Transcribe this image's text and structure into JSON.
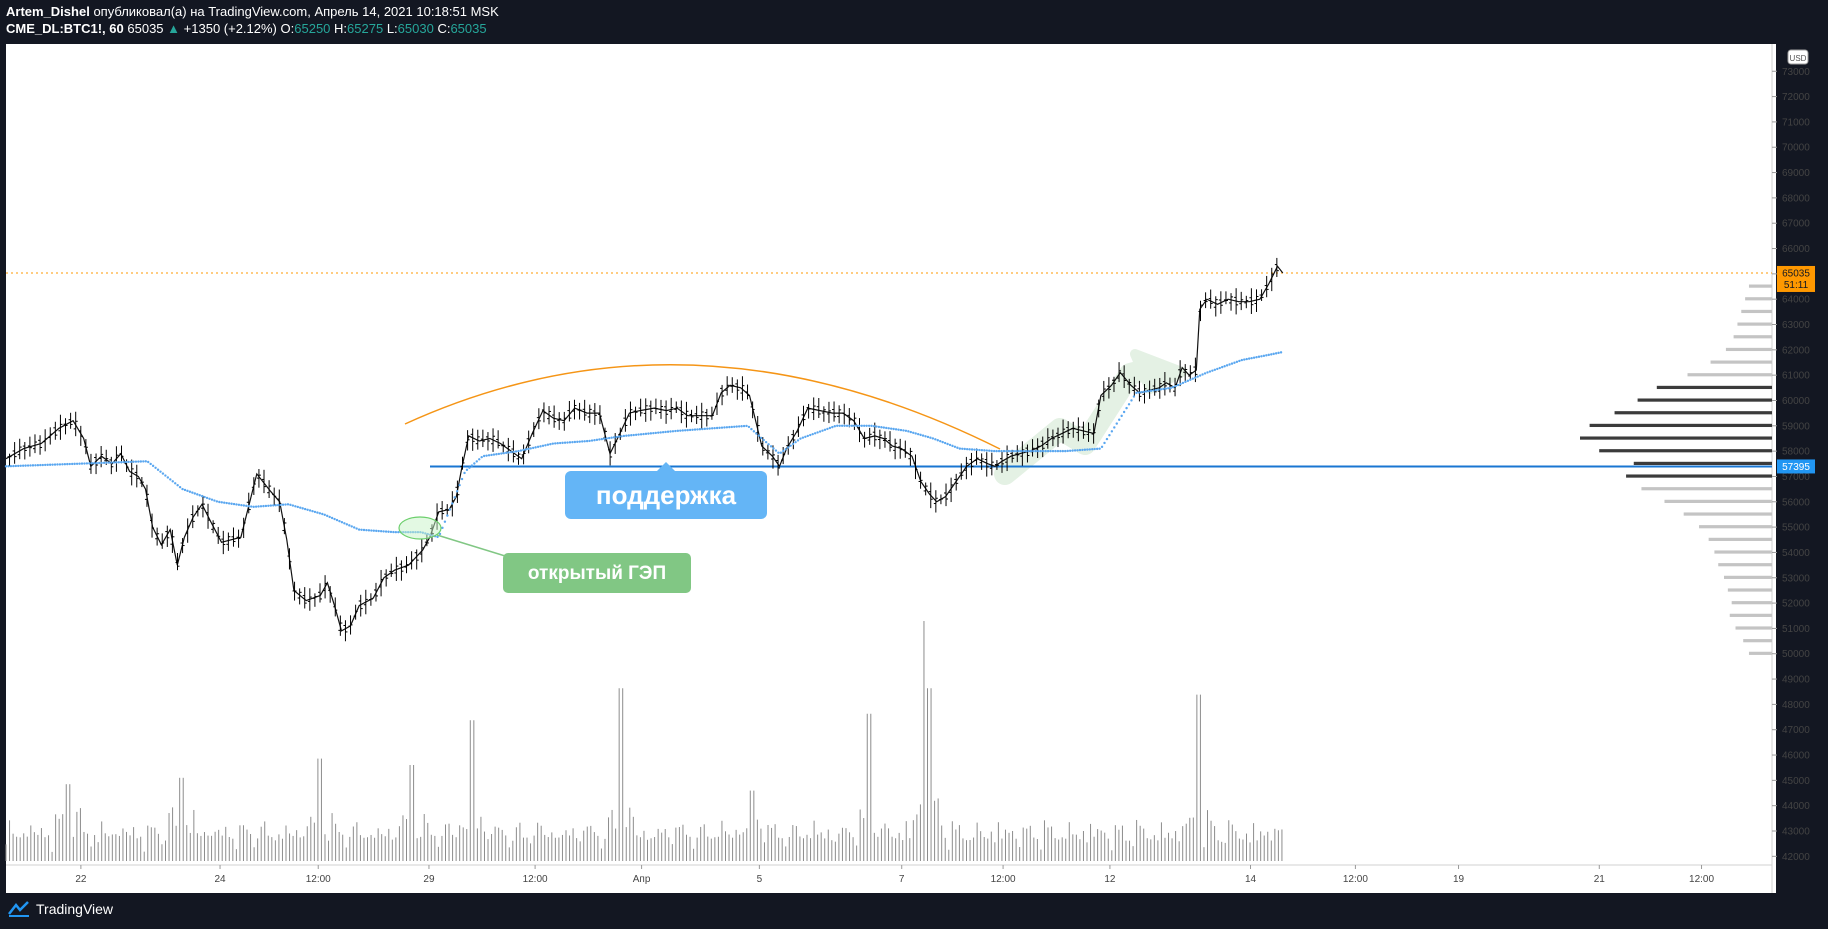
{
  "header": {
    "author": "Artem_Dishel",
    "published_text": "опубликовал(а) на TradingView.com, Апрель 14, 2021 10:18:51 MSK",
    "symbol": "CME_DL:BTC1!, 60",
    "last": "65035",
    "change_arrow": "▲",
    "change": "+1350 (+2.12%)",
    "o_label": "O:",
    "o_value": "65250",
    "h_label": "H:",
    "h_value": "65275",
    "l_label": "L:",
    "l_value": "65030",
    "c_label": "C:",
    "c_value": "65035"
  },
  "footer": {
    "brand": "TradingView"
  },
  "colors": {
    "background": "#131722",
    "plot_background": "#ffffff",
    "candle": "#000000",
    "vwap": "#5aa7f0",
    "support": "#1976d2",
    "arc": "#f59516",
    "price_tag": "#ff9800",
    "support_tag": "#2196f3",
    "callout_blue": "#64b5f6",
    "callout_green": "#81c784",
    "volume": "#8c8c8c",
    "profile_dark": "#3b3b3b",
    "profile_light": "#c4c4c4",
    "up_text": "#26a69a"
  },
  "chart_data": {
    "type": "candlestick",
    "symbol": "CME_DL:BTC1!",
    "interval": "60",
    "currency": "USD",
    "ylim": [
      41500,
      73800
    ],
    "y_ticks": [
      42000,
      43000,
      44000,
      45000,
      46000,
      47000,
      48000,
      49000,
      50000,
      51000,
      52000,
      53000,
      54000,
      55000,
      56000,
      57000,
      58000,
      59000,
      60000,
      61000,
      62000,
      63000,
      64000,
      65000,
      66000,
      67000,
      68000,
      69000,
      70000,
      71000,
      72000,
      73000
    ],
    "x_tick_labels": [
      {
        "label": "22",
        "pos": 0.0424
      },
      {
        "label": "24",
        "pos": 0.1212
      },
      {
        "label": "12:00",
        "pos": 0.1768
      },
      {
        "label": "29",
        "pos": 0.2395
      },
      {
        "label": "12:00",
        "pos": 0.2996
      },
      {
        "label": "Апр",
        "pos": 0.3599
      },
      {
        "label": "5",
        "pos": 0.4266
      },
      {
        "label": "7",
        "pos": 0.5072
      },
      {
        "label": "12:00",
        "pos": 0.5646
      },
      {
        "label": "12",
        "pos": 0.6251
      },
      {
        "label": "14",
        "pos": 0.7047
      },
      {
        "label": "12:00",
        "pos": 0.7641
      },
      {
        "label": "19",
        "pos": 0.8225
      },
      {
        "label": "21",
        "pos": 0.9022
      },
      {
        "label": "12:00",
        "pos": 0.9601
      }
    ],
    "price_path": [
      [
        0.0,
        57700
      ],
      [
        0.01,
        58100
      ],
      [
        0.02,
        58300
      ],
      [
        0.03,
        58900
      ],
      [
        0.038,
        59200
      ],
      [
        0.044,
        58500
      ],
      [
        0.048,
        57400
      ],
      [
        0.054,
        57800
      ],
      [
        0.06,
        57500
      ],
      [
        0.065,
        57900
      ],
      [
        0.07,
        57200
      ],
      [
        0.075,
        57000
      ],
      [
        0.079,
        56500
      ],
      [
        0.083,
        55000
      ],
      [
        0.088,
        54300
      ],
      [
        0.093,
        54900
      ],
      [
        0.097,
        53500
      ],
      [
        0.101,
        54600
      ],
      [
        0.106,
        55400
      ],
      [
        0.111,
        55900
      ],
      [
        0.116,
        55200
      ],
      [
        0.122,
        54400
      ],
      [
        0.133,
        54600
      ],
      [
        0.142,
        57100
      ],
      [
        0.15,
        56400
      ],
      [
        0.155,
        56000
      ],
      [
        0.159,
        54500
      ],
      [
        0.163,
        52500
      ],
      [
        0.17,
        52100
      ],
      [
        0.178,
        52300
      ],
      [
        0.182,
        52800
      ],
      [
        0.186,
        51900
      ],
      [
        0.19,
        50900
      ],
      [
        0.195,
        51100
      ],
      [
        0.2,
        51900
      ],
      [
        0.208,
        52200
      ],
      [
        0.214,
        53000
      ],
      [
        0.22,
        53300
      ],
      [
        0.228,
        53500
      ],
      [
        0.236,
        54100
      ],
      [
        0.24,
        54600
      ],
      [
        0.245,
        55600
      ],
      [
        0.251,
        55700
      ],
      [
        0.255,
        56200
      ],
      [
        0.258,
        57300
      ],
      [
        0.262,
        58600
      ],
      [
        0.268,
        58400
      ],
      [
        0.274,
        58500
      ],
      [
        0.28,
        58300
      ],
      [
        0.286,
        58000
      ],
      [
        0.292,
        57700
      ],
      [
        0.298,
        58700
      ],
      [
        0.304,
        59600
      ],
      [
        0.31,
        59300
      ],
      [
        0.316,
        59200
      ],
      [
        0.322,
        59700
      ],
      [
        0.329,
        59500
      ],
      [
        0.336,
        59500
      ],
      [
        0.342,
        57900
      ],
      [
        0.347,
        58600
      ],
      [
        0.353,
        59500
      ],
      [
        0.359,
        59600
      ],
      [
        0.367,
        59700
      ],
      [
        0.374,
        59600
      ],
      [
        0.38,
        59700
      ],
      [
        0.386,
        59400
      ],
      [
        0.393,
        59400
      ],
      [
        0.4,
        59400
      ],
      [
        0.405,
        60300
      ],
      [
        0.41,
        60600
      ],
      [
        0.416,
        60500
      ],
      [
        0.421,
        60200
      ],
      [
        0.428,
        58200
      ],
      [
        0.434,
        57800
      ],
      [
        0.438,
        57400
      ],
      [
        0.442,
        58100
      ],
      [
        0.448,
        58800
      ],
      [
        0.454,
        59700
      ],
      [
        0.461,
        59600
      ],
      [
        0.468,
        59500
      ],
      [
        0.474,
        59500
      ],
      [
        0.48,
        59200
      ],
      [
        0.486,
        58500
      ],
      [
        0.492,
        58600
      ],
      [
        0.497,
        58500
      ],
      [
        0.502,
        58200
      ],
      [
        0.507,
        58100
      ],
      [
        0.513,
        57800
      ],
      [
        0.518,
        56800
      ],
      [
        0.523,
        56300
      ],
      [
        0.527,
        56000
      ],
      [
        0.532,
        56200
      ],
      [
        0.538,
        56800
      ],
      [
        0.544,
        57400
      ],
      [
        0.55,
        57700
      ],
      [
        0.556,
        57500
      ],
      [
        0.56,
        57400
      ],
      [
        0.564,
        57600
      ],
      [
        0.569,
        57800
      ],
      [
        0.574,
        57900
      ],
      [
        0.58,
        58000
      ],
      [
        0.586,
        58200
      ],
      [
        0.592,
        58500
      ],
      [
        0.598,
        58700
      ],
      [
        0.604,
        58900
      ],
      [
        0.61,
        58800
      ],
      [
        0.616,
        58700
      ],
      [
        0.62,
        60200
      ],
      [
        0.626,
        60600
      ],
      [
        0.631,
        61100
      ],
      [
        0.637,
        60600
      ],
      [
        0.642,
        60300
      ],
      [
        0.647,
        60400
      ],
      [
        0.653,
        60500
      ],
      [
        0.657,
        60700
      ],
      [
        0.662,
        60500
      ],
      [
        0.666,
        61300
      ],
      [
        0.67,
        61000
      ],
      [
        0.674,
        61200
      ],
      [
        0.676,
        63600
      ],
      [
        0.68,
        64000
      ],
      [
        0.686,
        63800
      ],
      [
        0.692,
        64000
      ],
      [
        0.698,
        63900
      ],
      [
        0.704,
        63900
      ],
      [
        0.71,
        64000
      ],
      [
        0.715,
        64600
      ],
      [
        0.72,
        65300
      ],
      [
        0.723,
        65035
      ]
    ],
    "vwap_path": [
      [
        0.0,
        57400
      ],
      [
        0.04,
        57500
      ],
      [
        0.08,
        57600
      ],
      [
        0.1,
        56500
      ],
      [
        0.12,
        56000
      ],
      [
        0.14,
        55800
      ],
      [
        0.16,
        55900
      ],
      [
        0.18,
        55500
      ],
      [
        0.2,
        54900
      ],
      [
        0.22,
        54800
      ],
      [
        0.235,
        54800
      ],
      [
        0.245,
        54600
      ],
      [
        0.26,
        57200
      ],
      [
        0.27,
        57800
      ],
      [
        0.29,
        58000
      ],
      [
        0.31,
        58300
      ],
      [
        0.33,
        58400
      ],
      [
        0.35,
        58600
      ],
      [
        0.38,
        58800
      ],
      [
        0.4,
        58900
      ],
      [
        0.42,
        59000
      ],
      [
        0.428,
        58500
      ],
      [
        0.438,
        57900
      ],
      [
        0.45,
        58500
      ],
      [
        0.47,
        59000
      ],
      [
        0.49,
        59000
      ],
      [
        0.51,
        58800
      ],
      [
        0.525,
        58500
      ],
      [
        0.54,
        58100
      ],
      [
        0.56,
        58000
      ],
      [
        0.58,
        58000
      ],
      [
        0.6,
        58000
      ],
      [
        0.62,
        58100
      ],
      [
        0.64,
        60300
      ],
      [
        0.66,
        60500
      ],
      [
        0.68,
        61100
      ],
      [
        0.7,
        61600
      ],
      [
        0.715,
        61800
      ],
      [
        0.722,
        61900
      ]
    ],
    "volume_profile": [
      [
        50000,
        120
      ],
      [
        50500,
        150
      ],
      [
        51000,
        190
      ],
      [
        51500,
        220
      ],
      [
        52000,
        210
      ],
      [
        52500,
        230
      ],
      [
        53000,
        250
      ],
      [
        53500,
        280
      ],
      [
        54000,
        300
      ],
      [
        54500,
        330
      ],
      [
        55000,
        380
      ],
      [
        55500,
        460
      ],
      [
        56000,
        560
      ],
      [
        56500,
        680
      ],
      [
        57000,
        760
      ],
      [
        57500,
        720
      ],
      [
        58000,
        900
      ],
      [
        58500,
        1000
      ],
      [
        59000,
        950
      ],
      [
        59500,
        820
      ],
      [
        60000,
        700
      ],
      [
        60500,
        600
      ],
      [
        61000,
        440
      ],
      [
        61500,
        320
      ],
      [
        62000,
        240
      ],
      [
        62500,
        200
      ],
      [
        63000,
        180
      ],
      [
        63500,
        160
      ],
      [
        64000,
        140
      ],
      [
        64500,
        120
      ]
    ],
    "volume_peaks": [
      [
        0.035,
        12
      ],
      [
        0.1,
        13
      ],
      [
        0.177,
        16
      ],
      [
        0.23,
        15
      ],
      [
        0.264,
        22
      ],
      [
        0.349,
        27
      ],
      [
        0.423,
        11
      ],
      [
        0.488,
        23
      ],
      [
        0.52,
        38
      ],
      [
        0.523,
        27
      ],
      [
        0.675,
        26
      ]
    ],
    "annotations": {
      "last_price": "65035",
      "countdown": "51:11",
      "support_level": 57395,
      "support_label": "поддержка",
      "gap_label": "открытый ГЭП"
    }
  }
}
